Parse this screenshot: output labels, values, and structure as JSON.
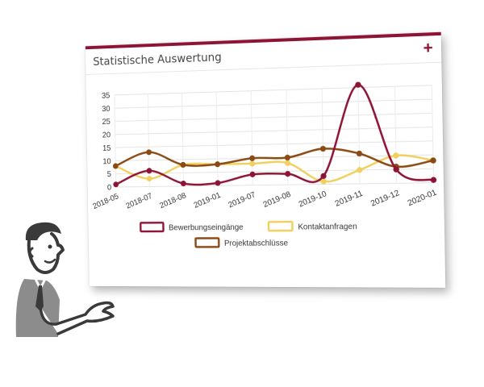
{
  "widget": {
    "title": "Statistische Auswertung",
    "expand_icon": "plus-icon",
    "expand_symbol": "+"
  },
  "colors": {
    "accent": "#8e1436",
    "series_bewerbung": "#8e1436",
    "series_kontakt": "#f0d060",
    "series_projekt": "#8b4a14"
  },
  "illustration": {
    "icon": "person-presenting-icon"
  },
  "chart_data": {
    "type": "line",
    "categories": [
      "2018-05",
      "2018-07",
      "2018-08",
      "2019-01",
      "2019-07",
      "2019-08",
      "2019-10",
      "2019-11",
      "2019-12",
      "2020-01"
    ],
    "y_ticks": [
      0,
      5,
      10,
      15,
      20,
      25,
      30,
      35
    ],
    "ylim": [
      0,
      35
    ],
    "grid": true,
    "legend_position": "bottom",
    "series": [
      {
        "name": "Bewerbungseingänge",
        "color": "#8e1436",
        "values": [
          1,
          6,
          1,
          1,
          4,
          4,
          3,
          36,
          5,
          1
        ]
      },
      {
        "name": "Kontaktanfragen",
        "color": "#f0d060",
        "values": [
          8,
          3,
          8,
          8,
          8,
          8,
          1,
          5,
          10,
          8
        ]
      },
      {
        "name": "Projektabschlüsse",
        "color": "#8b4a14",
        "values": [
          8,
          13,
          8,
          8,
          10,
          10,
          13,
          11,
          6,
          8
        ]
      }
    ]
  }
}
